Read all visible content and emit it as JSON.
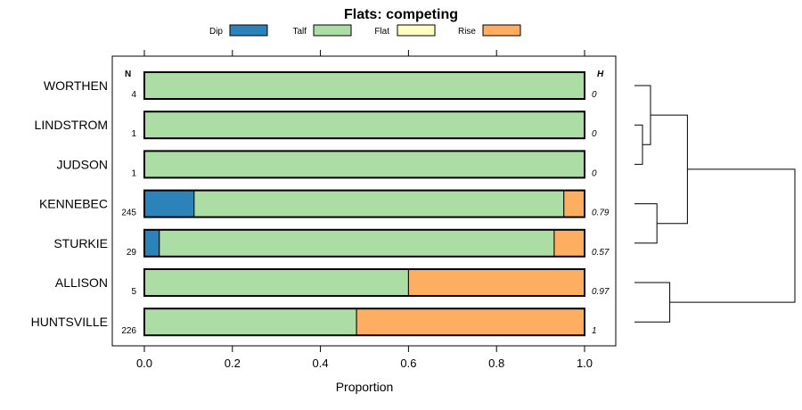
{
  "chart_data": {
    "type": "bar",
    "orientation": "horizontal",
    "stacked": true,
    "title": "Flats: competing",
    "xlabel": "Proportion",
    "ylabel": "",
    "xlim": [
      0,
      1
    ],
    "xticks": [
      0.0,
      0.2,
      0.4,
      0.6,
      0.8,
      1.0
    ],
    "xtick_labels": [
      "0.0",
      "0.2",
      "0.4",
      "0.6",
      "0.8",
      "1.0"
    ],
    "legend_position": "top",
    "categories": [
      "WORTHEN",
      "LINDSTROM",
      "JUDSON",
      "KENNEBEC",
      "STURKIE",
      "ALLISON",
      "HUNTSVILLE"
    ],
    "series": [
      {
        "name": "Dip",
        "color": "#2b83ba",
        "values": [
          0,
          0,
          0,
          0.113,
          0.034,
          0,
          0
        ]
      },
      {
        "name": "Talf",
        "color": "#abdda4",
        "values": [
          1,
          1,
          1,
          0.84,
          0.897,
          0.6,
          0.482
        ]
      },
      {
        "name": "Flat",
        "color": "#ffffbf",
        "values": [
          0,
          0,
          0,
          0,
          0,
          0,
          0
        ]
      },
      {
        "name": "Rise",
        "color": "#fdae61",
        "values": [
          0,
          0,
          0,
          0.047,
          0.069,
          0.4,
          0.518
        ]
      }
    ],
    "n_header": "N",
    "n_values": [
      "4",
      "1",
      "1",
      "245",
      "29",
      "5",
      "226"
    ],
    "h_header": "H",
    "h_values": [
      "0",
      "0",
      "0",
      "0.79",
      "0.57",
      "0.97",
      "1"
    ],
    "dendrogram": {
      "description_free": true,
      "merges": [
        {
          "a": 1,
          "b": 2,
          "height": 0.05
        },
        {
          "a": 0,
          "b": "m0",
          "height": 0.1
        },
        {
          "a": 3,
          "b": 4,
          "height": 0.14
        },
        {
          "a": "m1",
          "b": "m2",
          "height": 0.33
        },
        {
          "a": 5,
          "b": 6,
          "height": 0.22
        },
        {
          "a": "m3",
          "b": "m4",
          "height": 1.0
        }
      ]
    }
  }
}
